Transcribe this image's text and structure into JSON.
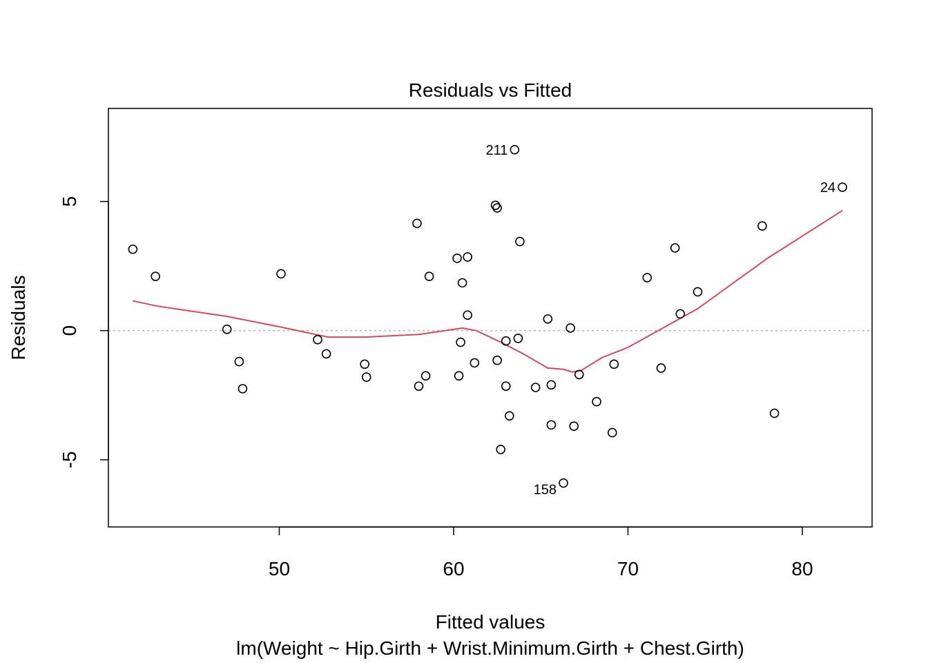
{
  "chart_data": {
    "type": "scatter",
    "title": "Residuals vs Fitted",
    "xlabel": "Fitted values",
    "ylabel": "Residuals",
    "subtitle": "lm(Weight ~ Hip.Girth + Wrist.Minimum.Girth + Chest.Girth)",
    "xlim": [
      40.2,
      84.0
    ],
    "ylim": [
      -7.6,
      8.6
    ],
    "x_ticks": [
      50,
      60,
      70,
      80
    ],
    "y_ticks": [
      -5,
      0,
      5
    ],
    "reference_line_y": 0,
    "colors": {
      "points": "#000000",
      "smooth": "#d1495b",
      "reference": "#b3b3b3"
    },
    "points": [
      {
        "x": 41.6,
        "y": 3.15
      },
      {
        "x": 42.9,
        "y": 2.1
      },
      {
        "x": 47.0,
        "y": 0.05
      },
      {
        "x": 47.7,
        "y": -1.2
      },
      {
        "x": 47.9,
        "y": -2.25
      },
      {
        "x": 50.1,
        "y": 2.2
      },
      {
        "x": 52.2,
        "y": -0.35
      },
      {
        "x": 52.7,
        "y": -0.9
      },
      {
        "x": 54.9,
        "y": -1.3
      },
      {
        "x": 55.0,
        "y": -1.8
      },
      {
        "x": 57.9,
        "y": 4.15
      },
      {
        "x": 58.0,
        "y": -2.15
      },
      {
        "x": 58.4,
        "y": -1.75
      },
      {
        "x": 58.6,
        "y": 2.1
      },
      {
        "x": 60.2,
        "y": 2.8
      },
      {
        "x": 60.3,
        "y": -1.75
      },
      {
        "x": 60.4,
        "y": -0.45
      },
      {
        "x": 60.5,
        "y": 1.85
      },
      {
        "x": 60.8,
        "y": 2.85
      },
      {
        "x": 60.8,
        "y": 0.6
      },
      {
        "x": 61.2,
        "y": -1.25
      },
      {
        "x": 62.4,
        "y": 4.85
      },
      {
        "x": 62.5,
        "y": 4.75
      },
      {
        "x": 62.5,
        "y": -1.15
      },
      {
        "x": 62.7,
        "y": -4.6
      },
      {
        "x": 63.0,
        "y": -0.4
      },
      {
        "x": 63.0,
        "y": -2.15
      },
      {
        "x": 63.2,
        "y": -3.3
      },
      {
        "x": 63.5,
        "y": 7.0,
        "label": "211"
      },
      {
        "x": 63.7,
        "y": -0.3
      },
      {
        "x": 63.8,
        "y": 3.45
      },
      {
        "x": 64.7,
        "y": -2.2
      },
      {
        "x": 65.4,
        "y": 0.45
      },
      {
        "x": 65.6,
        "y": -3.65
      },
      {
        "x": 65.6,
        "y": -2.1
      },
      {
        "x": 66.3,
        "y": -5.9,
        "label": "158"
      },
      {
        "x": 66.7,
        "y": 0.1
      },
      {
        "x": 66.9,
        "y": -3.7
      },
      {
        "x": 67.2,
        "y": -1.7
      },
      {
        "x": 68.2,
        "y": -2.75
      },
      {
        "x": 69.1,
        "y": -3.95
      },
      {
        "x": 69.2,
        "y": -1.3
      },
      {
        "x": 71.1,
        "y": 2.05
      },
      {
        "x": 71.9,
        "y": -1.45
      },
      {
        "x": 72.7,
        "y": 3.2
      },
      {
        "x": 73.0,
        "y": 0.65
      },
      {
        "x": 74.0,
        "y": 1.5
      },
      {
        "x": 77.7,
        "y": 4.05
      },
      {
        "x": 78.4,
        "y": -3.2
      },
      {
        "x": 82.3,
        "y": 5.55,
        "label": "24"
      }
    ],
    "smooth_line": [
      {
        "x": 41.6,
        "y": 1.15
      },
      {
        "x": 43.0,
        "y": 0.95
      },
      {
        "x": 47.0,
        "y": 0.55
      },
      {
        "x": 50.0,
        "y": 0.15
      },
      {
        "x": 52.8,
        "y": -0.25
      },
      {
        "x": 54.9,
        "y": -0.25
      },
      {
        "x": 58.0,
        "y": -0.15
      },
      {
        "x": 60.5,
        "y": 0.1
      },
      {
        "x": 61.3,
        "y": 0.0
      },
      {
        "x": 62.7,
        "y": -0.45
      },
      {
        "x": 64.0,
        "y": -0.9
      },
      {
        "x": 65.4,
        "y": -1.45
      },
      {
        "x": 66.3,
        "y": -1.5
      },
      {
        "x": 66.8,
        "y": -1.6
      },
      {
        "x": 67.3,
        "y": -1.55
      },
      {
        "x": 68.5,
        "y": -1.05
      },
      {
        "x": 70.0,
        "y": -0.65
      },
      {
        "x": 72.0,
        "y": 0.1
      },
      {
        "x": 74.0,
        "y": 0.85
      },
      {
        "x": 78.0,
        "y": 2.8
      },
      {
        "x": 82.3,
        "y": 4.65
      }
    ]
  }
}
